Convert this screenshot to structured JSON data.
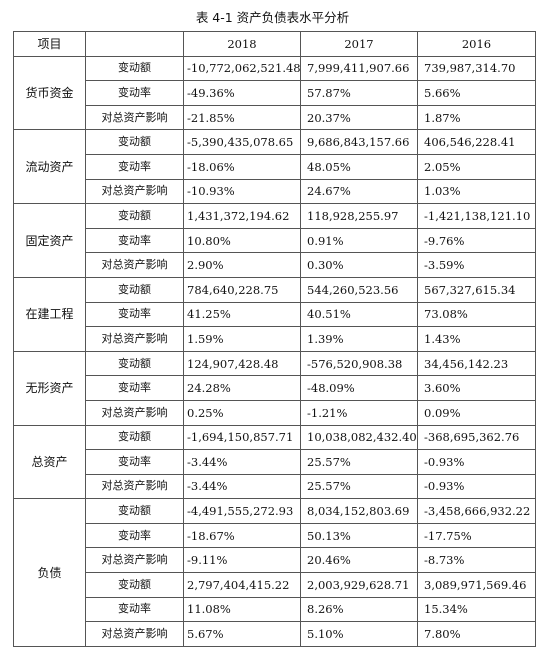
{
  "caption": "表 4-1   资产负债表水平分析",
  "table": {
    "corner_header": "项目",
    "year_headers": [
      "2018",
      "2017",
      "2016"
    ],
    "groups": [
      {
        "item": "货币资金",
        "rows": [
          {
            "metric": "变动额",
            "values": [
              "-10,772,062,521.48",
              "7,999,411,907.66",
              "739,987,314.70"
            ]
          },
          {
            "metric": "变动率",
            "values": [
              "-49.36%",
              "57.87%",
              "5.66%"
            ]
          },
          {
            "metric": "对总资产影响",
            "values": [
              "-21.85%",
              "20.37%",
              "1.87%"
            ]
          }
        ]
      },
      {
        "item": "流动资产",
        "rows": [
          {
            "metric": "变动额",
            "values": [
              "-5,390,435,078.65",
              "9,686,843,157.66",
              "406,546,228.41"
            ]
          },
          {
            "metric": "变动率",
            "values": [
              "-18.06%",
              "48.05%",
              "2.05%"
            ]
          },
          {
            "metric": "对总资产影响",
            "values": [
              "-10.93%",
              "24.67%",
              "1.03%"
            ]
          }
        ]
      },
      {
        "item": "固定资产",
        "rows": [
          {
            "metric": "变动额",
            "values": [
              "1,431,372,194.62",
              "118,928,255.97",
              "-1,421,138,121.10"
            ]
          },
          {
            "metric": "变动率",
            "values": [
              "10.80%",
              "0.91%",
              "-9.76%"
            ]
          },
          {
            "metric": "对总资产影响",
            "values": [
              "2.90%",
              "0.30%",
              "-3.59%"
            ]
          }
        ]
      },
      {
        "item": "在建工程",
        "rows": [
          {
            "metric": "变动额",
            "values": [
              "784,640,228.75",
              "544,260,523.56",
              "567,327,615.34"
            ]
          },
          {
            "metric": "变动率",
            "values": [
              "41.25%",
              "40.51%",
              "73.08%"
            ]
          },
          {
            "metric": "对总资产影响",
            "values": [
              "1.59%",
              "1.39%",
              "1.43%"
            ]
          }
        ]
      },
      {
        "item": "无形资产",
        "rows": [
          {
            "metric": "变动额",
            "values": [
              "124,907,428.48",
              "-576,520,908.38",
              "34,456,142.23"
            ]
          },
          {
            "metric": "变动率",
            "values": [
              "24.28%",
              "-48.09%",
              "3.60%"
            ]
          },
          {
            "metric": "对总资产影响",
            "values": [
              "0.25%",
              "-1.21%",
              "0.09%"
            ]
          }
        ]
      },
      {
        "item": "总资产",
        "rows": [
          {
            "metric": "变动额",
            "values": [
              "-1,694,150,857.71",
              "10,038,082,432.40",
              "-368,695,362.76"
            ]
          },
          {
            "metric": "变动率",
            "values": [
              "-3.44%",
              "25.57%",
              "-0.93%"
            ]
          },
          {
            "metric": "对总资产影响",
            "values": [
              "-3.44%",
              "25.57%",
              "-0.93%"
            ]
          }
        ]
      },
      {
        "item": "负债",
        "rows": [
          {
            "metric": "变动额",
            "values": [
              "-4,491,555,272.93",
              "8,034,152,803.69",
              "-3,458,666,932.22"
            ]
          },
          {
            "metric": "变动率",
            "values": [
              "-18.67%",
              "50.13%",
              "-17.75%"
            ]
          },
          {
            "metric": "对总资产影响",
            "values": [
              "-9.11%",
              "20.46%",
              "-8.73%"
            ]
          },
          {
            "metric": "变动额",
            "values": [
              "2,797,404,415.22",
              "2,003,929,628.71",
              "3,089,971,569.46"
            ]
          },
          {
            "metric": "变动率",
            "values": [
              "11.08%",
              "8.26%",
              "15.34%"
            ]
          },
          {
            "metric": "对总资产影响",
            "values": [
              "5.67%",
              "5.10%",
              "7.80%"
            ]
          }
        ]
      }
    ]
  }
}
